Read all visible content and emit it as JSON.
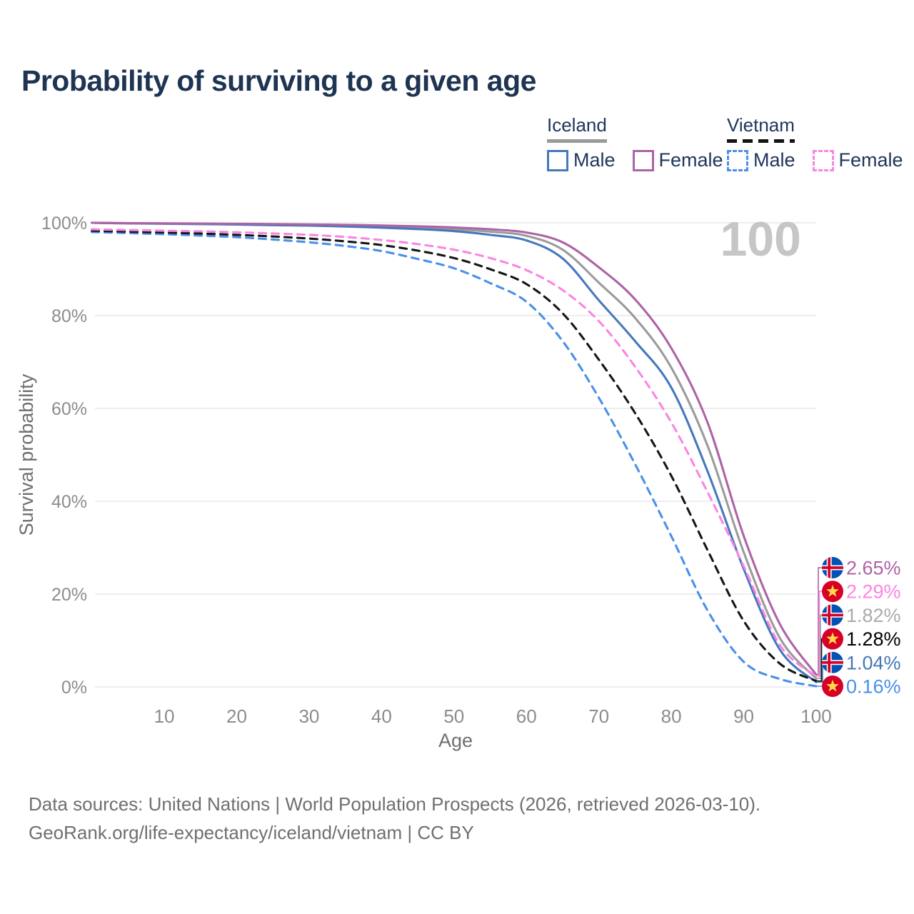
{
  "title": "Probability of surviving to a given age",
  "legend": {
    "groups": [
      {
        "label": "Iceland",
        "line_style": "solid",
        "underline_color": "#9a9a9a",
        "items": [
          {
            "label": "Male",
            "color": "#4678bb"
          },
          {
            "label": "Female",
            "color": "#ad63a6"
          }
        ]
      },
      {
        "label": "Vietnam",
        "line_style": "dashed",
        "underline_color": "#141414",
        "items": [
          {
            "label": "Male",
            "color": "#4a90e8"
          },
          {
            "label": "Female",
            "color": "#fb85e1"
          }
        ]
      }
    ]
  },
  "chart_data": {
    "type": "line",
    "title": "Probability of surviving to a given age",
    "xlabel": "Age",
    "ylabel": "Survival probability",
    "xlim": [
      0,
      100
    ],
    "ylim": [
      0,
      100
    ],
    "x_ticks": [
      10,
      20,
      30,
      40,
      50,
      60,
      70,
      80,
      90,
      100
    ],
    "y_tick_labels": [
      "0%",
      "20%",
      "40%",
      "60%",
      "80%",
      "100%"
    ],
    "grid": "horizontal",
    "hover_age_watermark": "100",
    "x": [
      0,
      5,
      10,
      15,
      20,
      25,
      30,
      35,
      40,
      45,
      50,
      55,
      60,
      65,
      70,
      75,
      80,
      85,
      90,
      95,
      100
    ],
    "series": [
      {
        "name": "Iceland Female",
        "country": "Iceland",
        "sex": "Female",
        "dash": false,
        "color": "#ad63a6",
        "label_color": "#ad63a6",
        "flag": "iceland",
        "end_label": "2.65%",
        "values": [
          100,
          99.93,
          99.88,
          99.83,
          99.78,
          99.72,
          99.65,
          99.55,
          99.42,
          99.25,
          99.0,
          98.6,
          97.9,
          95.8,
          90.4,
          83.5,
          73,
          57,
          32.5,
          13.5,
          2.65
        ]
      },
      {
        "name": "Vietnam Female",
        "country": "Vietnam",
        "sex": "Female",
        "dash": true,
        "color": "#fb85e1",
        "label_color": "#fb85e1",
        "flag": "vietnam",
        "end_label": "2.29%",
        "values": [
          98.6,
          98.45,
          98.3,
          98.15,
          97.95,
          97.7,
          97.4,
          96.95,
          96.3,
          95.4,
          94.2,
          92.4,
          89.8,
          85.5,
          78.8,
          69,
          57,
          42,
          26,
          9,
          2.29
        ]
      },
      {
        "name": "Iceland Both sexes",
        "country": "Iceland",
        "sex": "Both",
        "dash": false,
        "color": "#9b9b9b",
        "label_color": "#ababab",
        "flag": "iceland",
        "end_label": "1.82%",
        "values": [
          100,
          99.9,
          99.85,
          99.8,
          99.72,
          99.62,
          99.5,
          99.35,
          99.2,
          98.95,
          98.6,
          98.1,
          97.2,
          94.2,
          87.1,
          79.5,
          68.8,
          52,
          29,
          10.5,
          1.82
        ]
      },
      {
        "name": "Vietnam Both sexes",
        "country": "Vietnam",
        "sex": "Both",
        "dash": true,
        "color": "#161616",
        "label_color": "#000000",
        "flag": "vietnam",
        "end_label": "1.28%",
        "values": [
          98.3,
          98.1,
          97.9,
          97.68,
          97.4,
          97.05,
          96.6,
          96,
          95.2,
          94,
          92.4,
          90,
          86.8,
          80.5,
          70.5,
          59,
          45.5,
          29.5,
          14.2,
          5,
          1.28
        ]
      },
      {
        "name": "Iceland Male",
        "country": "Iceland",
        "sex": "Male",
        "dash": false,
        "color": "#4678bb",
        "label_color": "#4678bb",
        "flag": "iceland",
        "end_label": "1.04%",
        "values": [
          100,
          99.88,
          99.8,
          99.72,
          99.62,
          99.5,
          99.38,
          99.2,
          98.95,
          98.65,
          98.2,
          97.4,
          96.2,
          92.3,
          83.3,
          74.5,
          64.5,
          46.5,
          25.4,
          8.0,
          1.04
        ]
      },
      {
        "name": "Vietnam Male",
        "country": "Vietnam",
        "sex": "Male",
        "dash": true,
        "color": "#4a90e8",
        "label_color": "#4a90e8",
        "flag": "vietnam",
        "end_label": "0.16%",
        "values": [
          98.0,
          97.78,
          97.55,
          97.25,
          96.9,
          96.4,
          95.8,
          95,
          93.9,
          92.2,
          90.2,
          87,
          83,
          74.5,
          62.3,
          48,
          32.5,
          16.5,
          5.4,
          1.7,
          0.16
        ]
      }
    ]
  },
  "colors": {
    "title_text": "#1e3453",
    "axis_tick_text": "#8c8c8c",
    "axis_title_text": "#6f6f6f",
    "gridline": "#e9e9ec",
    "watermark": "#c6c6c6",
    "flag_iceland_blue": "#0052B4",
    "flag_iceland_red": "#D80027",
    "flag_vietnam_red": "#D80027",
    "flag_vietnam_star": "#FFDA44"
  },
  "footer": {
    "line1": "Data sources: United Nations | World Population Prospects (2026, retrieved 2026-03-10).",
    "line2": "GeoRank.org/life-expectancy/iceland/vietnam | CC BY"
  }
}
